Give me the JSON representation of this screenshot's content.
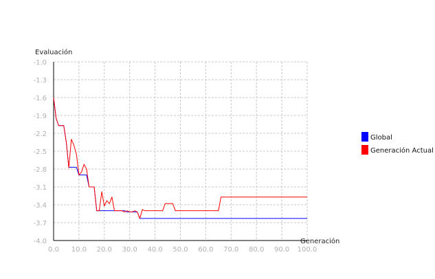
{
  "chart_data": {
    "type": "line",
    "title": "",
    "xlabel": "Generación",
    "ylabel": "Evaluación",
    "xlim": [
      0,
      100
    ],
    "ylim": [
      -4.0,
      -1.0
    ],
    "x_ticks": [
      "0.0",
      "10.0",
      "20.0",
      "30.0",
      "40.0",
      "50.0",
      "60.0",
      "70.0",
      "80.0",
      "90.0",
      "100.0"
    ],
    "y_ticks": [
      "-1.0",
      "-1.3",
      "-1.6",
      "-1.9",
      "-2.2",
      "-2.5",
      "-2.8",
      "-3.1",
      "-3.4",
      "-3.7",
      "-4.0"
    ],
    "grid": true,
    "legend_position": "right",
    "series": [
      {
        "name": "Global",
        "color": "#0000ff",
        "x": [
          0,
          1,
          2,
          3,
          4,
          5,
          6,
          7,
          8,
          9,
          10,
          11,
          12,
          13,
          14,
          15,
          16,
          17,
          18,
          19,
          20,
          21,
          22,
          23,
          24,
          25,
          26,
          27,
          28,
          29,
          30,
          31,
          32,
          33,
          34,
          35,
          36,
          40,
          50,
          60,
          70,
          80,
          90,
          100
        ],
        "y": [
          -1.6,
          -1.95,
          -2.07,
          -2.07,
          -2.07,
          -2.35,
          -2.77,
          -2.77,
          -2.77,
          -2.77,
          -2.9,
          -2.9,
          -2.9,
          -2.9,
          -3.1,
          -3.1,
          -3.1,
          -3.5,
          -3.5,
          -3.5,
          -3.5,
          -3.5,
          -3.5,
          -3.5,
          -3.5,
          -3.5,
          -3.5,
          -3.5,
          -3.5,
          -3.52,
          -3.52,
          -3.52,
          -3.52,
          -3.52,
          -3.63,
          -3.63,
          -3.63,
          -3.63,
          -3.63,
          -3.63,
          -3.63,
          -3.63,
          -3.63,
          -3.63
        ]
      },
      {
        "name": "Generación Actual",
        "color": "#ff0000",
        "x": [
          0,
          1,
          2,
          3,
          4,
          5,
          6,
          7,
          8,
          9,
          10,
          11,
          12,
          13,
          14,
          15,
          16,
          17,
          18,
          19,
          20,
          21,
          22,
          23,
          24,
          25,
          26,
          27,
          28,
          29,
          30,
          31,
          32,
          33,
          34,
          35,
          36,
          37,
          38,
          39,
          40,
          41,
          42,
          43,
          44,
          45,
          46,
          47,
          48,
          49,
          50,
          55,
          60,
          65,
          66,
          67,
          70,
          80,
          90,
          100
        ],
        "y": [
          -1.6,
          -1.95,
          -2.07,
          -2.07,
          -2.07,
          -2.35,
          -2.78,
          -2.3,
          -2.4,
          -2.55,
          -2.9,
          -2.85,
          -2.72,
          -2.8,
          -3.1,
          -3.1,
          -3.1,
          -3.5,
          -3.5,
          -3.18,
          -3.42,
          -3.33,
          -3.38,
          -3.27,
          -3.5,
          -3.5,
          -3.5,
          -3.5,
          -3.52,
          -3.5,
          -3.52,
          -3.52,
          -3.5,
          -3.52,
          -3.63,
          -3.48,
          -3.5,
          -3.5,
          -3.5,
          -3.5,
          -3.5,
          -3.5,
          -3.5,
          -3.5,
          -3.38,
          -3.38,
          -3.38,
          -3.38,
          -3.5,
          -3.5,
          -3.5,
          -3.5,
          -3.5,
          -3.5,
          -3.27,
          -3.27,
          -3.27,
          -3.27,
          -3.27,
          -3.27
        ]
      }
    ]
  }
}
